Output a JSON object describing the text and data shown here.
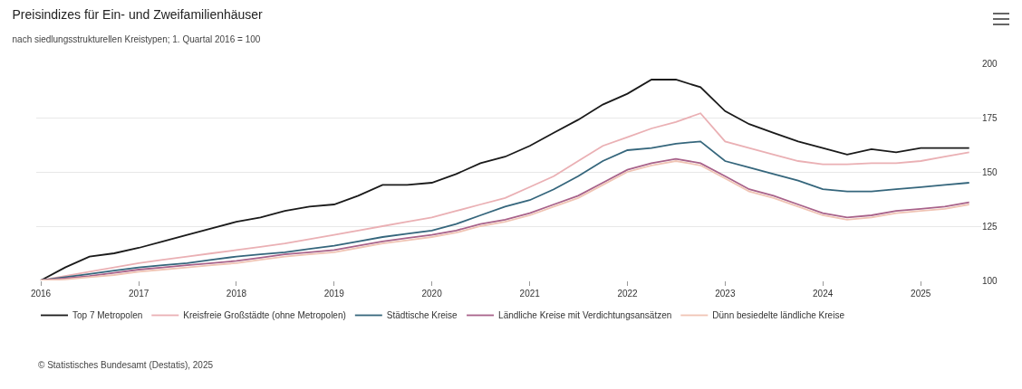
{
  "chart_data": {
    "type": "line",
    "title": "Preisindizes für Ein- und Zweifamilienhäuser",
    "subtitle": "nach siedlungsstrukturellen Kreistypen; 1. Quartal 2016 = 100",
    "x": [
      "2016-01",
      "2016-04",
      "2016-07",
      "2016-10",
      "2017-01",
      "2017-04",
      "2017-07",
      "2017-10",
      "2018-01",
      "2018-04",
      "2018-07",
      "2018-10",
      "2019-01",
      "2019-04",
      "2019-07",
      "2019-10",
      "2020-01",
      "2020-04",
      "2020-07",
      "2020-10",
      "2021-01",
      "2021-04",
      "2021-07",
      "2021-10",
      "2022-01",
      "2022-04",
      "2022-07",
      "2022-10",
      "2023-01",
      "2023-04",
      "2023-07",
      "2023-10",
      "2024-01",
      "2024-04",
      "2024-07",
      "2024-10",
      "2025-01",
      "2025-04",
      "2025-07"
    ],
    "series": [
      {
        "name": "Top 7 Metropolen",
        "color": "#1a1a1a",
        "values": [
          100,
          106,
          111,
          112.5,
          115,
          118,
          121,
          124,
          127,
          129,
          132,
          134,
          135,
          139,
          144,
          144,
          145,
          149,
          154,
          157,
          162,
          168,
          174,
          181,
          186,
          192.5,
          192.5,
          189,
          178,
          172,
          168,
          164,
          161,
          158,
          160.5,
          159,
          161,
          161,
          161
        ]
      },
      {
        "name": "Kreisfreie Großstädte (ohne Metropolen)",
        "color": "#eab0b4",
        "values": [
          100,
          102,
          104,
          106,
          108,
          109.5,
          111,
          112.5,
          114,
          115.5,
          117,
          119,
          121,
          123,
          125,
          127,
          129,
          132,
          135,
          138,
          143,
          148,
          155,
          162,
          166,
          170,
          173,
          177,
          164,
          161,
          158,
          155,
          153.5,
          153.5,
          154,
          154,
          155,
          157,
          159
        ]
      },
      {
        "name": "Städtische Kreise",
        "color": "#35667c",
        "values": [
          100,
          101.5,
          103,
          104.5,
          106,
          107,
          108,
          109.5,
          111,
          112,
          113,
          114.5,
          116,
          118,
          120,
          121.5,
          123,
          126,
          130,
          134,
          137,
          142,
          148,
          155,
          160,
          161,
          163,
          164,
          155,
          152,
          149,
          146,
          142,
          141,
          141,
          142,
          143,
          144,
          145
        ]
      },
      {
        "name": "Ländliche Kreise mit Verdichtungsansätzen",
        "color": "#a8628a",
        "values": [
          100,
          101,
          102,
          103.5,
          105,
          106,
          107,
          108,
          109,
          110.5,
          112,
          113,
          114,
          116,
          118,
          119.5,
          121,
          123,
          126,
          128,
          131,
          135,
          139,
          145,
          151,
          154,
          156,
          154,
          148,
          142,
          139,
          135,
          131,
          129,
          130,
          132,
          133,
          134,
          136
        ]
      },
      {
        "name": "Dünn besiedelte ländliche Kreise",
        "color": "#f0c4b4",
        "values": [
          100,
          100.5,
          101.5,
          102.5,
          104,
          105,
          106,
          107,
          108,
          109.5,
          111,
          112,
          113,
          115,
          117,
          118.5,
          120,
          122,
          125,
          127,
          130,
          134,
          138,
          144,
          150,
          153,
          155,
          153,
          147,
          141,
          138,
          134,
          130,
          128,
          129,
          131,
          132,
          133,
          135
        ]
      }
    ],
    "xlim": [
      "2015-12-15",
      "2025-08-15"
    ],
    "xticks": [
      "2016",
      "2017",
      "2018",
      "2019",
      "2020",
      "2021",
      "2022",
      "2023",
      "2024",
      "2025"
    ],
    "ylim": [
      100,
      200
    ],
    "yticks": [
      100,
      125,
      150,
      175,
      200
    ],
    "grid": "y",
    "legend": "bottom",
    "marker": "none",
    "line_style": "solid",
    "annotations": [
      "© Statistisches Bundesamt (Destatis), 2025"
    ]
  }
}
